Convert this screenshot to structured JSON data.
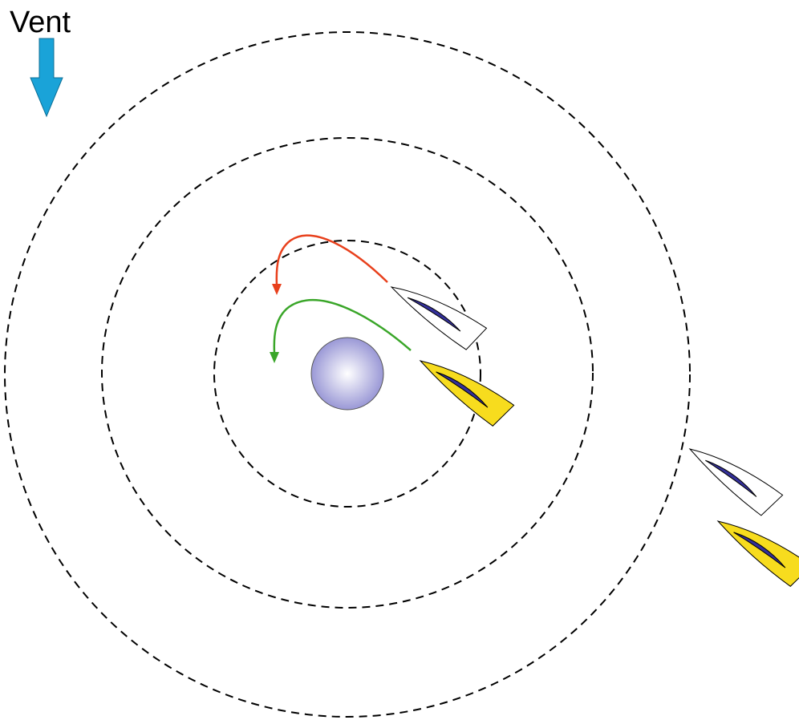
{
  "label": "Vent"
}
